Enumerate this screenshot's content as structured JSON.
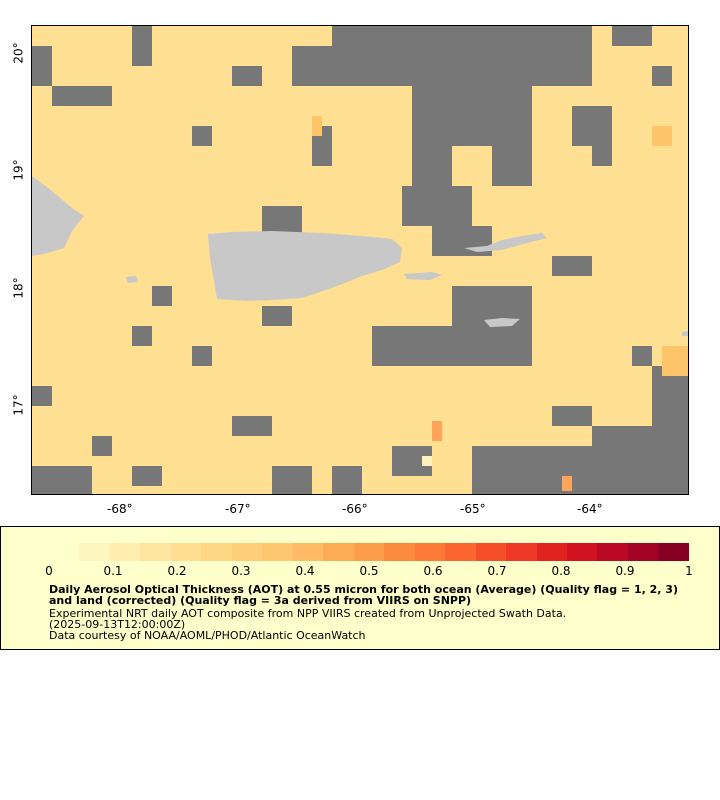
{
  "map": {
    "lon_ticks": [
      "-68°",
      "-67°",
      "-66°",
      "-65°",
      "-64°"
    ],
    "lat_ticks": [
      "20°",
      "19°",
      "18°",
      "17°"
    ],
    "no_data_color": "#777777",
    "land_color": "#c8c8c8",
    "ocean_aot_color": "#ffdf91"
  },
  "legend": {
    "colorbar_ticks": [
      "0",
      "0.1",
      "0.2",
      "0.3",
      "0.4",
      "0.5",
      "0.6",
      "0.7",
      "0.8",
      "0.9",
      "1"
    ],
    "colorbar_colors": [
      "#ffffcc",
      "#fff6bd",
      "#ffeeae",
      "#ffe6a0",
      "#ffdd91",
      "#ffd683",
      "#fecf78",
      "#fec66f",
      "#feba64",
      "#feab56",
      "#fd9c49",
      "#fd8b3e",
      "#fd7a36",
      "#fc652f",
      "#f74e2a",
      "#ee3725",
      "#e12320",
      "#d01221",
      "#bb0824",
      "#a30326",
      "#860026"
    ],
    "title": "Daily Aerosol Optical Thickness (AOT) at 0.55 micron for both ocean (Average) (Quality flag = 1, 2, 3) and land (corrected) (Quality flag = 3a derived from VIIRS on SNPP)",
    "line1": "Experimental NRT daily AOT composite from NPP VIIRS created from Unprojected Swath Data.",
    "line2": "(2025-09-13T12:00:00Z)",
    "line3": "Data courtesy of NOAA/AOML/PHOD/Atlantic OceanWatch"
  }
}
